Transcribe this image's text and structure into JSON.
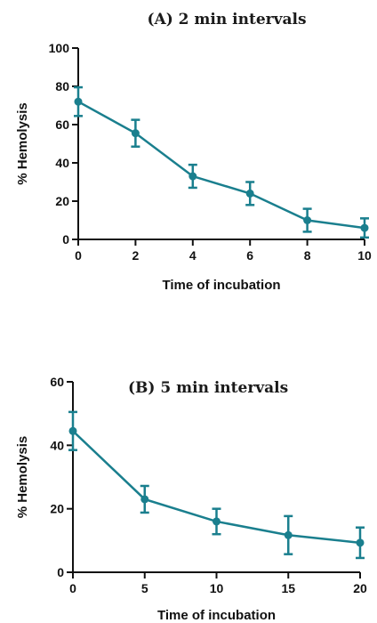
{
  "chart_data": [
    {
      "type": "line",
      "title": "(A)   2 min intervals",
      "xlabel": "Time of incubation",
      "ylabel": "% Hemolysis",
      "xlim": [
        0,
        10
      ],
      "ylim": [
        0,
        100
      ],
      "x_ticks": [
        "0",
        "2",
        "4",
        "6",
        "8",
        "10"
      ],
      "y_ticks": [
        "0",
        "20",
        "40",
        "60",
        "80",
        "100"
      ],
      "grid": false,
      "color": "#1a7f8e",
      "series": [
        {
          "x": [
            0,
            2,
            4,
            6,
            8,
            10
          ],
          "y": [
            72,
            55.5,
            33,
            24,
            10,
            6
          ],
          "error": [
            7.5,
            7,
            6,
            6,
            6,
            5
          ]
        }
      ]
    },
    {
      "type": "line",
      "title": "(B)   5 min intervals",
      "xlabel": "Time of incubation",
      "ylabel": "% Hemolysis",
      "xlim": [
        0,
        20
      ],
      "ylim": [
        0,
        60
      ],
      "x_ticks": [
        "0",
        "5",
        "10",
        "15",
        "20"
      ],
      "y_ticks": [
        "0",
        "20",
        "40",
        "60"
      ],
      "grid": false,
      "color": "#1a7f8e",
      "series": [
        {
          "x": [
            0,
            5,
            10,
            15,
            20
          ],
          "y": [
            44.5,
            23,
            16,
            11.7,
            9.3
          ],
          "error": [
            6,
            4.2,
            4,
            6,
            4.8
          ]
        }
      ]
    }
  ]
}
